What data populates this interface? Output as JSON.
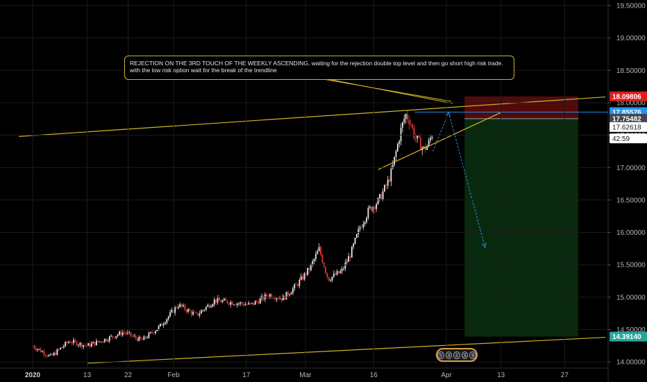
{
  "chart_data": {
    "type": "candlestick",
    "y_ticks": [
      "19.50000",
      "19.00000",
      "18.50000",
      "18.00000",
      "17.50000",
      "17.00000",
      "16.50000",
      "16.00000",
      "15.50000",
      "15.00000",
      "14.50000",
      "14.00000"
    ],
    "y_tick_values": [
      19.5,
      19.0,
      18.5,
      18.0,
      17.5,
      17.0,
      16.5,
      16.0,
      15.5,
      15.0,
      14.5,
      14.0
    ],
    "ylim": [
      13.98,
      19.55
    ],
    "x_ticks": [
      {
        "label": "2020",
        "bold": true,
        "day": 0
      },
      {
        "label": "13",
        "bold": false,
        "day": 12
      },
      {
        "label": "22",
        "bold": false,
        "day": 21
      },
      {
        "label": "Feb",
        "bold": false,
        "day": 31
      },
      {
        "label": "17",
        "bold": false,
        "day": 47
      },
      {
        "label": "Mar",
        "bold": false,
        "day": 60
      },
      {
        "label": "16",
        "bold": false,
        "day": 75
      },
      {
        "label": "Apr",
        "bold": false,
        "day": 91
      },
      {
        "label": "13",
        "bold": false,
        "day": 103
      },
      {
        "label": "27",
        "bold": false,
        "day": 117
      }
    ],
    "price_tags": [
      {
        "label": "18.09806",
        "value": 18.09806,
        "bg": "#e01d1d",
        "fg": "#ffffff"
      },
      {
        "label": "17.85576",
        "value": 17.85576,
        "bg": "#2196f3",
        "fg": "#ffffff"
      },
      {
        "label": "17.75482",
        "value": 17.75482,
        "bg": "#434651",
        "fg": "#ffffff"
      },
      {
        "label": "17.62618",
        "value": 17.62618,
        "bg": "#ffffff",
        "fg": "#131722"
      },
      {
        "label": "42:59",
        "value": 17.45,
        "bg": "#ffffff",
        "fg": "#131722"
      },
      {
        "label": "14.39140",
        "value": 14.3914,
        "bg": "#26a69a",
        "fg": "#ffffff"
      }
    ],
    "annotation": {
      "line1": "REJECTION ON THE 3RD TOUCH OF THE WEEKLY ASCENDING, waiting for the rejection double top level and then go short high risk trade.",
      "line2": "with the low risk option wait for the break of the trendline"
    },
    "position": {
      "side": "short",
      "stop": 18.09806,
      "entry": 17.75482,
      "target": 14.3914,
      "start_day": 95,
      "end_day": 120
    },
    "trendlines": [
      {
        "name": "upper-weekly",
        "from": [
          -3,
          17.48
        ],
        "to": [
          126,
          18.09
        ],
        "color": "#d4b429"
      },
      {
        "name": "lower-weekly",
        "from": [
          12,
          13.98
        ],
        "to": [
          126,
          14.38
        ],
        "color": "#d4b429"
      },
      {
        "name": "short-ascending",
        "from": [
          76,
          16.97
        ],
        "to": [
          103,
          17.85
        ],
        "color": "#d4b429"
      }
    ],
    "horizontal_line": {
      "value": 17.85576,
      "from_day": 84,
      "color": "#2196f3"
    },
    "projection_arrow": [
      [
        88,
        17.25
      ],
      [
        91.5,
        17.85
      ],
      [
        99.5,
        15.77
      ]
    ],
    "candles_anchor": [
      [
        0,
        14.25
      ],
      [
        4,
        14.08
      ],
      [
        8,
        14.32
      ],
      [
        12,
        14.25
      ],
      [
        16,
        14.35
      ],
      [
        20,
        14.46
      ],
      [
        24,
        14.33
      ],
      [
        28,
        14.55
      ],
      [
        32,
        14.88
      ],
      [
        36,
        14.72
      ],
      [
        40,
        14.95
      ],
      [
        44,
        14.92
      ],
      [
        48,
        14.88
      ],
      [
        52,
        15.04
      ],
      [
        55,
        14.98
      ],
      [
        58,
        15.18
      ],
      [
        61,
        15.45
      ],
      [
        63,
        15.74
      ],
      [
        65,
        15.28
      ],
      [
        68,
        15.4
      ],
      [
        70,
        15.68
      ],
      [
        72,
        16.08
      ],
      [
        74,
        16.35
      ],
      [
        76,
        16.48
      ],
      [
        78,
        16.75
      ],
      [
        79,
        16.95
      ],
      [
        81,
        17.58
      ],
      [
        82,
        17.82
      ],
      [
        83,
        17.72
      ],
      [
        84,
        17.48
      ],
      [
        86,
        17.28
      ],
      [
        87,
        17.35
      ],
      [
        88,
        17.55
      ]
    ],
    "badges": [
      "5",
      "3",
      "2",
      "3",
      "9"
    ],
    "colors": {
      "up": "#e8e8e8",
      "down": "#e53935",
      "grid": "#1c1c1c",
      "axis_text": "#b2b5be",
      "line": "#d4b429",
      "blue": "#2196f3",
      "stop_zone": "rgba(150,20,20,0.55)",
      "target_zone": "rgba(20,90,30,0.45)"
    }
  }
}
